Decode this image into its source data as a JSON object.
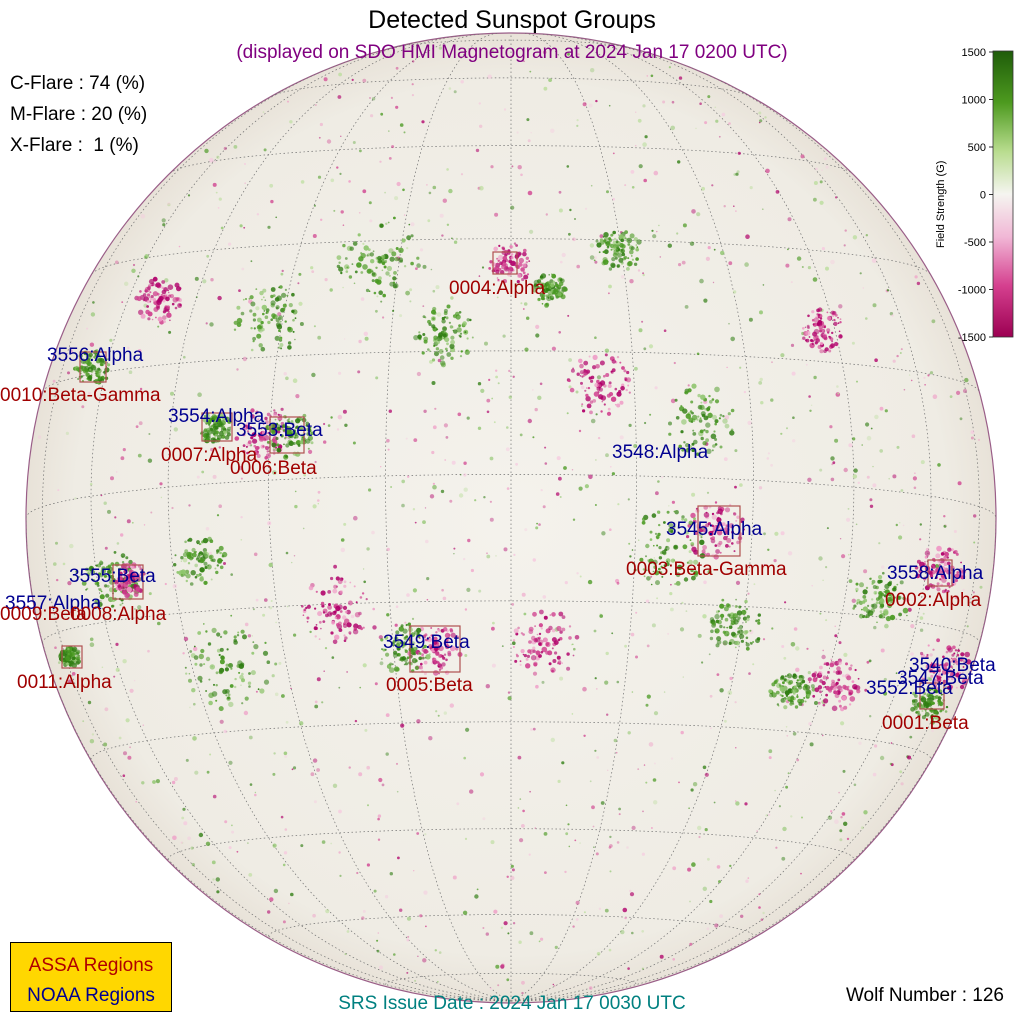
{
  "title": "Detected Sunspot Groups",
  "subtitle": "(displayed on SDO HMI Magnetogram at 2024 Jan 17 0200 UTC)",
  "flare_probabilities": [
    {
      "text": "C-Flare : 74 (%)"
    },
    {
      "text": "M-Flare : 20 (%)"
    },
    {
      "text": "X-Flare :  1 (%)"
    }
  ],
  "colorbar": {
    "title": "Field Strength (G)",
    "ticks": [
      "1500",
      "1000",
      "500",
      "0",
      "-500",
      "-1000",
      "-1500"
    ],
    "color_positive": "#2e7d0f",
    "color_negative": "#c0006a"
  },
  "colors": {
    "assa": "#a00000",
    "noaa": "#000090",
    "disk_background": "#f2f0ea",
    "legend_background": "#ffd700"
  },
  "noaa_regions": [
    {
      "label": "3556:Alpha"
    },
    {
      "label": "3554:Alpha"
    },
    {
      "label": "3553:Beta"
    },
    {
      "label": "3548:Alpha"
    },
    {
      "label": "3545:Alpha"
    },
    {
      "label": "3555:Beta"
    },
    {
      "label": "3557:Alpha"
    },
    {
      "label": "3549:Beta"
    },
    {
      "label": "3558:Alpha"
    },
    {
      "label": "3540:Beta"
    },
    {
      "label": "3547:Beta"
    },
    {
      "label": "3552:Beta"
    }
  ],
  "assa_regions": [
    {
      "label": "0004:Alpha"
    },
    {
      "label": "0010:Beta-Gamma"
    },
    {
      "label": "0007:Alpha"
    },
    {
      "label": "0006:Beta"
    },
    {
      "label": "0003:Beta-Gamma"
    },
    {
      "label": "0009:Beta"
    },
    {
      "label": "0008:Alpha"
    },
    {
      "label": "0011:Alpha"
    },
    {
      "label": "0005:Beta"
    },
    {
      "label": "0002:Alpha"
    },
    {
      "label": "0001:Beta"
    }
  ],
  "legend": {
    "assa": "ASSA Regions",
    "noaa": "NOAA Regions"
  },
  "srs_issue": "SRS Issue Date : 2024 Jan 17 0030 UTC",
  "wolf_number": "Wolf Number : 126"
}
